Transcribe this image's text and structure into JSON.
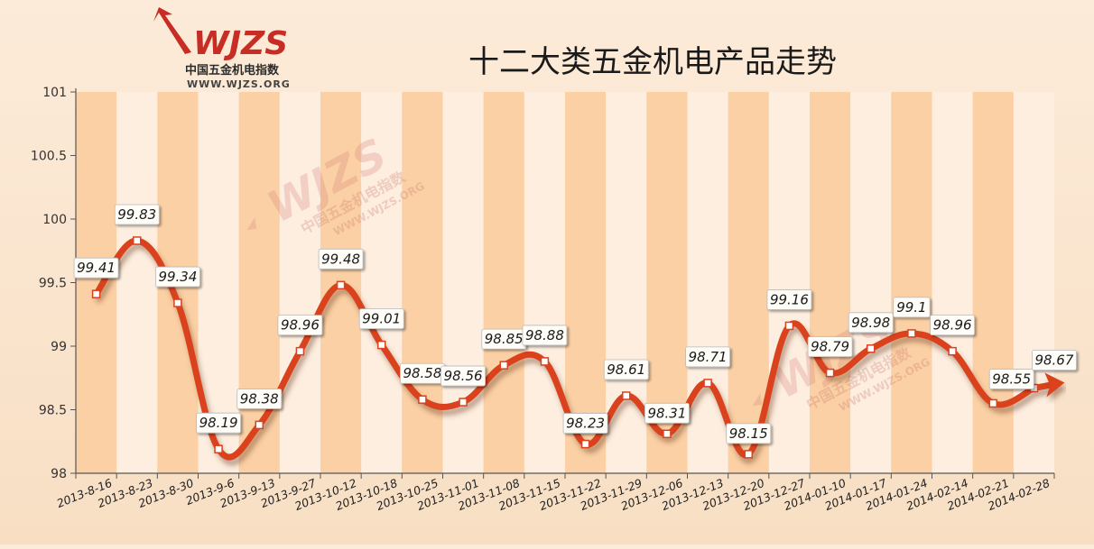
{
  "logo": {
    "word": "WJZS",
    "name_cn": "中国五金机电指数",
    "url": "WWW.WJZS.ORG"
  },
  "colors": {
    "line": "#d9431f",
    "band_dark": "#fbd0a4",
    "band_light": "#fdeedf",
    "logo_red": "#c72d24"
  },
  "chart_data": {
    "type": "line",
    "title": "十二大类五金机电产品走势",
    "xlabel": "",
    "ylabel": "",
    "ylim": [
      98,
      101
    ],
    "yticks": [
      "98",
      "98.5",
      "99",
      "99.5",
      "100",
      "100.5",
      "101"
    ],
    "grid": "vertical bands",
    "categories": [
      "2013-8-16",
      "2013-8-23",
      "2013-8-30",
      "2013-9-6",
      "2013-9-13",
      "2013-9-27",
      "2013-10-12",
      "2013-10-18",
      "2013-10-25",
      "2013-11-01",
      "2013-11-08",
      "2013-11-15",
      "2013-11-22",
      "2013-11-29",
      "2013-12-06",
      "2013-12-13",
      "2013-12-20",
      "2013-12-27",
      "2014-01-10",
      "2014-01-17",
      "2014-01-24",
      "2014-02-14",
      "2014-02-21",
      "2014-02-28"
    ],
    "values": [
      99.41,
      99.83,
      99.34,
      98.19,
      98.38,
      98.96,
      99.48,
      99.01,
      98.58,
      98.56,
      98.85,
      98.88,
      98.23,
      98.61,
      98.31,
      98.71,
      98.15,
      99.16,
      98.79,
      98.98,
      99.1,
      98.96,
      98.55,
      98.67
    ],
    "value_labels": [
      "99.41",
      "99.83",
      "99.34",
      "98.19",
      "98.38",
      "98.96",
      "99.48",
      "99.01",
      "98.58",
      "98.56",
      "98.85",
      "98.88",
      "98.23",
      "98.61",
      "98.31",
      "98.71",
      "98.15",
      "99.16",
      "98.79",
      "98.98",
      "99.1",
      "98.96",
      "98.55",
      "98.67"
    ]
  }
}
